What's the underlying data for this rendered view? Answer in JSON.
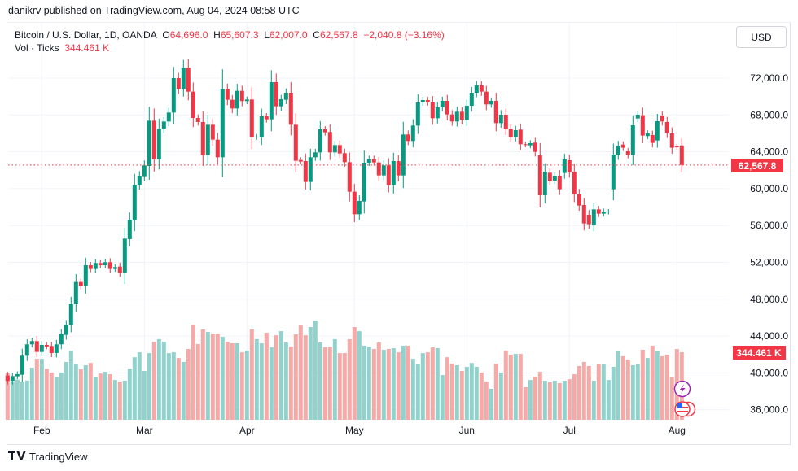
{
  "header": {
    "published": "danikrv published on TradingView.com, Aug 04, 2024 08:58 UTC"
  },
  "legend": {
    "symbol": "Bitcoin / U.S. Dollar, 1D, OANDA",
    "o_label": "O",
    "o": "64,696.0",
    "h_label": "H",
    "h": "65,607.3",
    "l_label": "L",
    "l": "62,007.0",
    "c_label": "C",
    "c": "62,567.8",
    "change": "−2,040.8 (−3.16%)",
    "vol_label": "Vol · Ticks",
    "vol": "344.461 K"
  },
  "currency_button": "USD",
  "price_badge": "62,567.8",
  "volume_badge": "344.461 K",
  "footer": {
    "brand": "TradingView"
  },
  "colors": {
    "up": "#089981",
    "down": "#f23645",
    "up_vol": "#92d2cc",
    "down_vol": "#f7a9a7",
    "event": "#9c27b0"
  },
  "chart_data": {
    "type": "candlestick",
    "title": "Bitcoin / U.S. Dollar, 1D, OANDA",
    "ylim": [
      34000,
      76000
    ],
    "y_ticks": [
      "72,000.0",
      "68,000.0",
      "64,000.0",
      "60,000.0",
      "56,000.0",
      "52,000.0",
      "48,000.0",
      "44,000.0",
      "40,000.0",
      "36,000.0"
    ],
    "y_tick_values": [
      72000,
      68000,
      64000,
      60000,
      56000,
      52000,
      48000,
      44000,
      40000,
      36000
    ],
    "x_ticks": [
      {
        "label": "Feb",
        "index": 7
      },
      {
        "label": "Mar",
        "index": 28
      },
      {
        "label": "Apr",
        "index": 49
      },
      {
        "label": "May",
        "index": 71
      },
      {
        "label": "Jun",
        "index": 94
      },
      {
        "label": "Jul",
        "index": 115
      },
      {
        "label": "Aug",
        "index": 137
      }
    ],
    "last_price": 62567.8,
    "fields": [
      "open",
      "close",
      "volume_k"
    ],
    "candles": [
      [
        39717,
        39130,
        239
      ],
      [
        39130,
        39655,
        195
      ],
      [
        39628,
        39862,
        205
      ],
      [
        39800,
        41864,
        195
      ],
      [
        41864,
        43100,
        200
      ],
      [
        43100,
        43453,
        266
      ],
      [
        43453,
        42274,
        311
      ],
      [
        42274,
        43040,
        311
      ],
      [
        43040,
        42865,
        260
      ],
      [
        42923,
        42159,
        241
      ],
      [
        42159,
        43100,
        216
      ],
      [
        43100,
        44219,
        241
      ],
      [
        44130,
        45220,
        295
      ],
      [
        45220,
        47455,
        353
      ],
      [
        47455,
        49870,
        282
      ],
      [
        49870,
        49427,
        257
      ],
      [
        49427,
        51693,
        278
      ],
      [
        51693,
        51282,
        290
      ],
      [
        51282,
        51929,
        216
      ],
      [
        51929,
        51693,
        236
      ],
      [
        51693,
        52017,
        245
      ],
      [
        52017,
        51282,
        232
      ],
      [
        51282,
        51487,
        203
      ],
      [
        51546,
        50840,
        195
      ],
      [
        50840,
        54578,
        199
      ],
      [
        54520,
        56638,
        261
      ],
      [
        56580,
        60405,
        319
      ],
      [
        60405,
        61406,
        344
      ],
      [
        61347,
        62524,
        249
      ],
      [
        62465,
        67380,
        340
      ],
      [
        67380,
        63172,
        398
      ],
      [
        63172,
        66497,
        411
      ],
      [
        66497,
        67292,
        398
      ],
      [
        67292,
        68263,
        340
      ],
      [
        68263,
        72000,
        344
      ],
      [
        72000,
        70853,
        315
      ],
      [
        70853,
        73119,
        295
      ],
      [
        73119,
        70529,
        361
      ],
      [
        70529,
        67674,
        484
      ],
      [
        67674,
        67233,
        386
      ],
      [
        67233,
        63643,
        461
      ],
      [
        63643,
        66938,
        448
      ],
      [
        66938,
        65320,
        440
      ],
      [
        65320,
        63407,
        440
      ],
      [
        63407,
        70823,
        423
      ],
      [
        70823,
        69646,
        398
      ],
      [
        69646,
        68704,
        390
      ],
      [
        68704,
        70617,
        390
      ],
      [
        70617,
        69499,
        344
      ],
      [
        69499,
        69676,
        353
      ],
      [
        69676,
        65585,
        461
      ],
      [
        65585,
        65650,
        411
      ],
      [
        65585,
        67851,
        390
      ],
      [
        67851,
        67527,
        444
      ],
      [
        67527,
        71559,
        369
      ],
      [
        71559,
        68940,
        431
      ],
      [
        68940,
        69705,
        452
      ],
      [
        69646,
        70411,
        394
      ],
      [
        70411,
        66938,
        373
      ],
      [
        66938,
        63024,
        436
      ],
      [
        63113,
        62936,
        481
      ],
      [
        62995,
        60729,
        431
      ],
      [
        60729,
        63407,
        473
      ],
      [
        63407,
        63936,
        506
      ],
      [
        63936,
        66438,
        394
      ],
      [
        66438,
        66114,
        369
      ],
      [
        66144,
        63936,
        373
      ],
      [
        63936,
        64731,
        411
      ],
      [
        64731,
        63819,
        340
      ],
      [
        63849,
        62877,
        340
      ],
      [
        62877,
        59669,
        411
      ],
      [
        59669,
        57226,
        473
      ],
      [
        57226,
        58669,
        452
      ],
      [
        58610,
        62818,
        378
      ],
      [
        62818,
        63230,
        373
      ],
      [
        63230,
        62848,
        361
      ],
      [
        62848,
        61435,
        394
      ],
      [
        61435,
        62524,
        357
      ],
      [
        62524,
        60376,
        361
      ],
      [
        60376,
        62995,
        365
      ],
      [
        62995,
        61435,
        344
      ],
      [
        61435,
        65879,
        378
      ],
      [
        65879,
        65173,
        378
      ],
      [
        65173,
        66850,
        311
      ],
      [
        66850,
        69352,
        282
      ],
      [
        69352,
        69617,
        340
      ],
      [
        69617,
        69352,
        344
      ],
      [
        69352,
        67645,
        369
      ],
      [
        67645,
        68822,
        365
      ],
      [
        68822,
        69528,
        228
      ],
      [
        69528,
        68057,
        319
      ],
      [
        68057,
        67292,
        286
      ],
      [
        67292,
        68351,
        278
      ],
      [
        68351,
        67468,
        249
      ],
      [
        67468,
        68999,
        270
      ],
      [
        68999,
        70411,
        290
      ],
      [
        70411,
        71206,
        270
      ],
      [
        71206,
        70529,
        241
      ],
      [
        70529,
        69146,
        195
      ],
      [
        69146,
        69528,
        158
      ],
      [
        69528,
        67115,
        286
      ],
      [
        67115,
        68028,
        241
      ],
      [
        68028,
        66468,
        353
      ],
      [
        66468,
        65585,
        332
      ],
      [
        65585,
        66350,
        336
      ],
      [
        66409,
        64819,
        336
      ],
      [
        64819,
        64761,
        166
      ],
      [
        64702,
        64937,
        203
      ],
      [
        64996,
        63996,
        220
      ],
      [
        63613,
        59287,
        245
      ],
      [
        59287,
        61847,
        199
      ],
      [
        61730,
        60817,
        191
      ],
      [
        60876,
        61406,
        199
      ],
      [
        61406,
        59934,
        187
      ],
      [
        61700,
        63172,
        199
      ],
      [
        63083,
        61788,
        207
      ],
      [
        61847,
        59404,
        232
      ],
      [
        59404,
        58168,
        274
      ],
      [
        58227,
        56226,
        295
      ],
      [
        57168,
        56138,
        274
      ],
      [
        56049,
        57757,
        199
      ],
      [
        57757,
        57285,
        282
      ],
      [
        57285,
        57521,
        282
      ],
      [
        57462,
        57521,
        203
      ],
      [
        59934,
        63701,
        270
      ],
      [
        63643,
        64672,
        349
      ],
      [
        64790,
        64437,
        324
      ],
      [
        64054,
        63643,
        307
      ],
      [
        63643,
        66880,
        278
      ],
      [
        67615,
        68028,
        282
      ],
      [
        67969,
        65762,
        357
      ],
      [
        65703,
        65997,
        315
      ],
      [
        65820,
        64967,
        378
      ],
      [
        65232,
        67321,
        349
      ],
      [
        67939,
        67292,
        324
      ],
      [
        67233,
        66056,
        332
      ],
      [
        65997,
        64437,
        216
      ],
      [
        64584,
        64525,
        361
      ],
      [
        64696,
        62567.8,
        344.461
      ]
    ]
  }
}
